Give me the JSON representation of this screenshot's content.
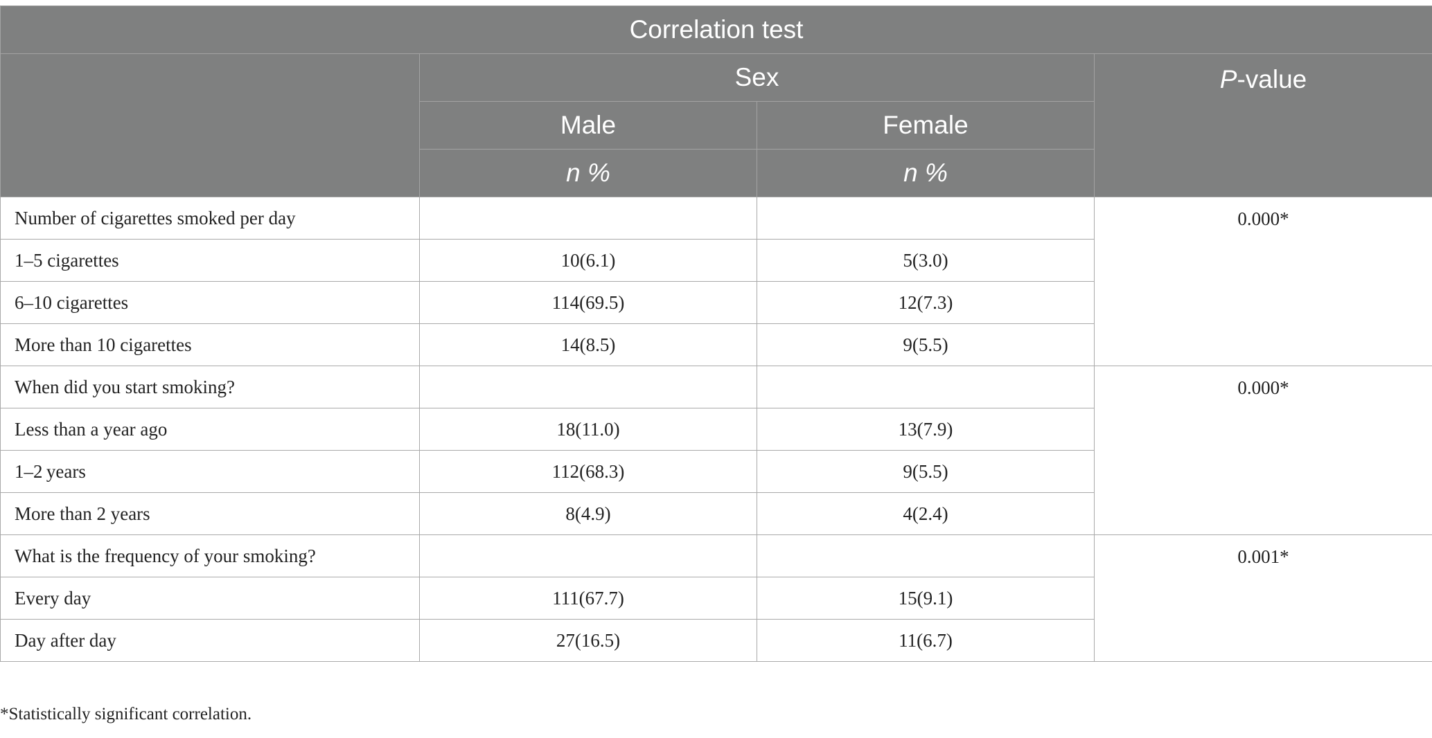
{
  "table": {
    "title": "Correlation test",
    "group_header": "Sex",
    "pvalue_header_italic": "P",
    "pvalue_header_rest": "-value",
    "columns": [
      "Male",
      "Female"
    ],
    "units": [
      "n %",
      "n %"
    ],
    "sections": [
      {
        "question": "Number of cigarettes smoked per day",
        "p_value": "0.000*",
        "rows": [
          {
            "label": "1–5 cigarettes",
            "male": "10(6.1)",
            "female": "5(3.0)"
          },
          {
            "label": "6–10 cigarettes",
            "male": "114(69.5)",
            "female": "12(7.3)"
          },
          {
            "label": "More than 10 cigarettes",
            "male": "14(8.5)",
            "female": "9(5.5)"
          }
        ]
      },
      {
        "question": "When did you start smoking?",
        "p_value": "0.000*",
        "rows": [
          {
            "label": "Less than a year ago",
            "male": "18(11.0)",
            "female": "13(7.9)"
          },
          {
            "label": "1–2 years",
            "male": "112(68.3)",
            "female": "9(5.5)"
          },
          {
            "label": "More than 2 years",
            "male": "8(4.9)",
            "female": "4(2.4)"
          }
        ]
      },
      {
        "question": "What is the frequency of your smoking?",
        "p_value": "0.001*",
        "rows": [
          {
            "label": "Every day",
            "male": "111(67.7)",
            "female": "15(9.1)"
          },
          {
            "label": "Day after day",
            "male": "27(16.5)",
            "female": "11(6.7)"
          }
        ]
      }
    ]
  },
  "footnote": "*Statistically significant correlation."
}
